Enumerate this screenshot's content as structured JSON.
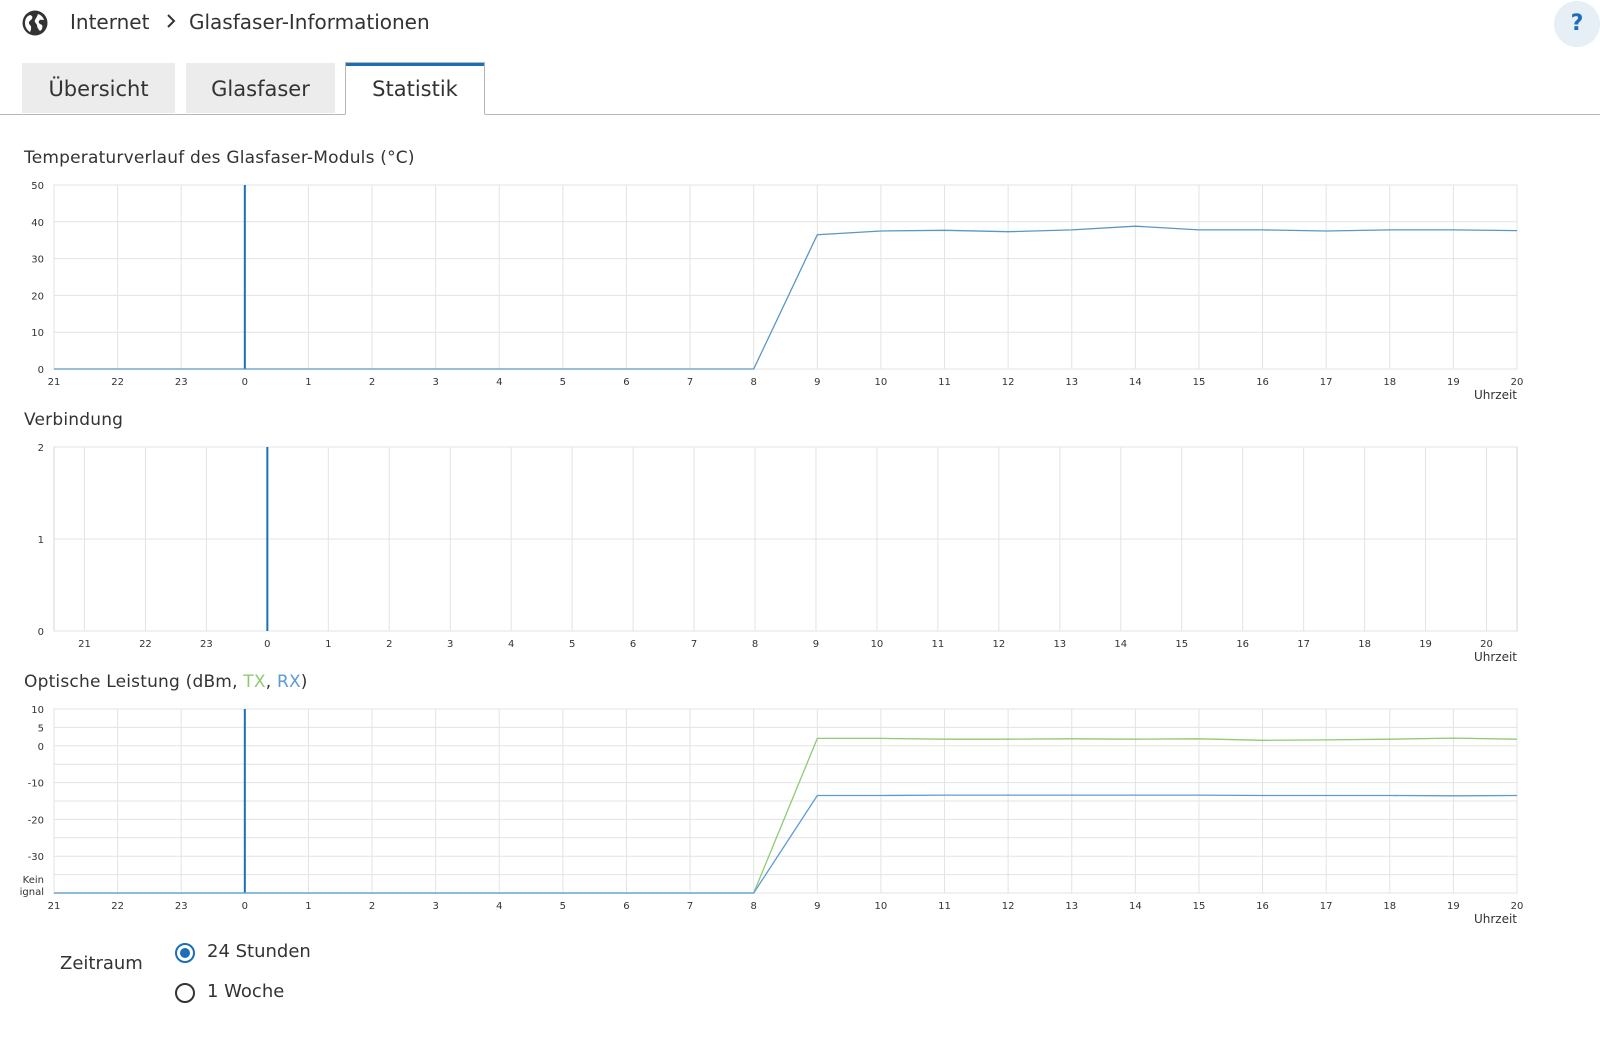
{
  "breadcrumb": {
    "items": [
      "Internet",
      "Glasfaser-Informationen"
    ]
  },
  "help_label": "?",
  "tabs": [
    {
      "label": "Übersicht",
      "active": false
    },
    {
      "label": "Glasfaser",
      "active": false
    },
    {
      "label": "Statistik",
      "active": true
    }
  ],
  "colors": {
    "accent": "#1c6eb8",
    "temperature_line": "#5b97c2",
    "tx_line": "#8fca72",
    "rx_line": "#5b9bd5",
    "grid": "#dcdcdc"
  },
  "charts": {
    "temperature": {
      "title": "Temperaturverlauf des Glasfaser-Moduls (°C)"
    },
    "connection": {
      "title": "Verbindung"
    },
    "optical": {
      "title_prefix": "Optische Leistung (dBm, ",
      "tx_label": "TX",
      "separator": ", ",
      "rx_label": "RX",
      "title_suffix": ")"
    }
  },
  "chart_data": [
    {
      "type": "line",
      "title": "Temperaturverlauf des Glasfaser-Moduls (°C)",
      "xlabel": "Uhrzeit",
      "ylabel": "",
      "x": [
        "21",
        "22",
        "23",
        "0",
        "1",
        "2",
        "3",
        "4",
        "5",
        "6",
        "7",
        "8",
        "9",
        "10",
        "11",
        "12",
        "13",
        "14",
        "15",
        "16",
        "17",
        "18",
        "19",
        "20"
      ],
      "yticks": [
        "0",
        "10",
        "20",
        "30",
        "40",
        "50"
      ],
      "ylim": [
        0,
        50
      ],
      "marker_at": "0",
      "series": [
        {
          "values": [
            0,
            0,
            0,
            0,
            0,
            0,
            0,
            0,
            0,
            0,
            0,
            0,
            36.5,
            37.5,
            37.7,
            37.3,
            37.8,
            38.8,
            37.8,
            37.8,
            37.5,
            37.8,
            37.8,
            37.6
          ]
        }
      ],
      "grid": true
    },
    {
      "type": "line",
      "title": "Verbindung",
      "xlabel": "Uhrzeit",
      "ylabel": "",
      "x": [
        "21",
        "22",
        "23",
        "0",
        "1",
        "2",
        "3",
        "4",
        "5",
        "6",
        "7",
        "8",
        "9",
        "10",
        "11",
        "12",
        "13",
        "14",
        "15",
        "16",
        "17",
        "18",
        "19",
        "20"
      ],
      "yticks": [
        "0",
        "1",
        "2"
      ],
      "ylim": [
        0,
        2
      ],
      "marker_at": "0",
      "series": [],
      "grid": true
    },
    {
      "type": "line",
      "title": "Optische Leistung (dBm, TX, RX)",
      "xlabel": "Uhrzeit",
      "ylabel": "",
      "x": [
        "21",
        "22",
        "23",
        "0",
        "1",
        "2",
        "3",
        "4",
        "5",
        "6",
        "7",
        "8",
        "9",
        "10",
        "11",
        "12",
        "13",
        "14",
        "15",
        "16",
        "17",
        "18",
        "19",
        "20"
      ],
      "yticks": [
        "Kein ignal",
        "-30",
        "-20",
        "-10",
        "0",
        "5",
        "10"
      ],
      "ylim": [
        -40,
        10
      ],
      "marker_at": "0",
      "series": [
        {
          "name": "TX",
          "values": [
            -40,
            -40,
            -40,
            -40,
            -40,
            -40,
            -40,
            -40,
            -40,
            -40,
            -40,
            -40,
            2,
            2,
            1.8,
            1.8,
            1.9,
            1.8,
            1.9,
            1.5,
            1.6,
            1.8,
            2.1,
            1.8
          ]
        },
        {
          "name": "RX",
          "values": [
            -40,
            -40,
            -40,
            -40,
            -40,
            -40,
            -40,
            -40,
            -40,
            -40,
            -40,
            -40,
            -13.5,
            -13.5,
            -13.4,
            -13.4,
            -13.4,
            -13.4,
            -13.4,
            -13.5,
            -13.5,
            -13.5,
            -13.6,
            -13.5
          ]
        }
      ],
      "grid": true
    }
  ],
  "zeitraum": {
    "label": "Zeitraum",
    "options": [
      {
        "label": "24 Stunden",
        "checked": true
      },
      {
        "label": "1 Woche",
        "checked": false
      }
    ]
  }
}
